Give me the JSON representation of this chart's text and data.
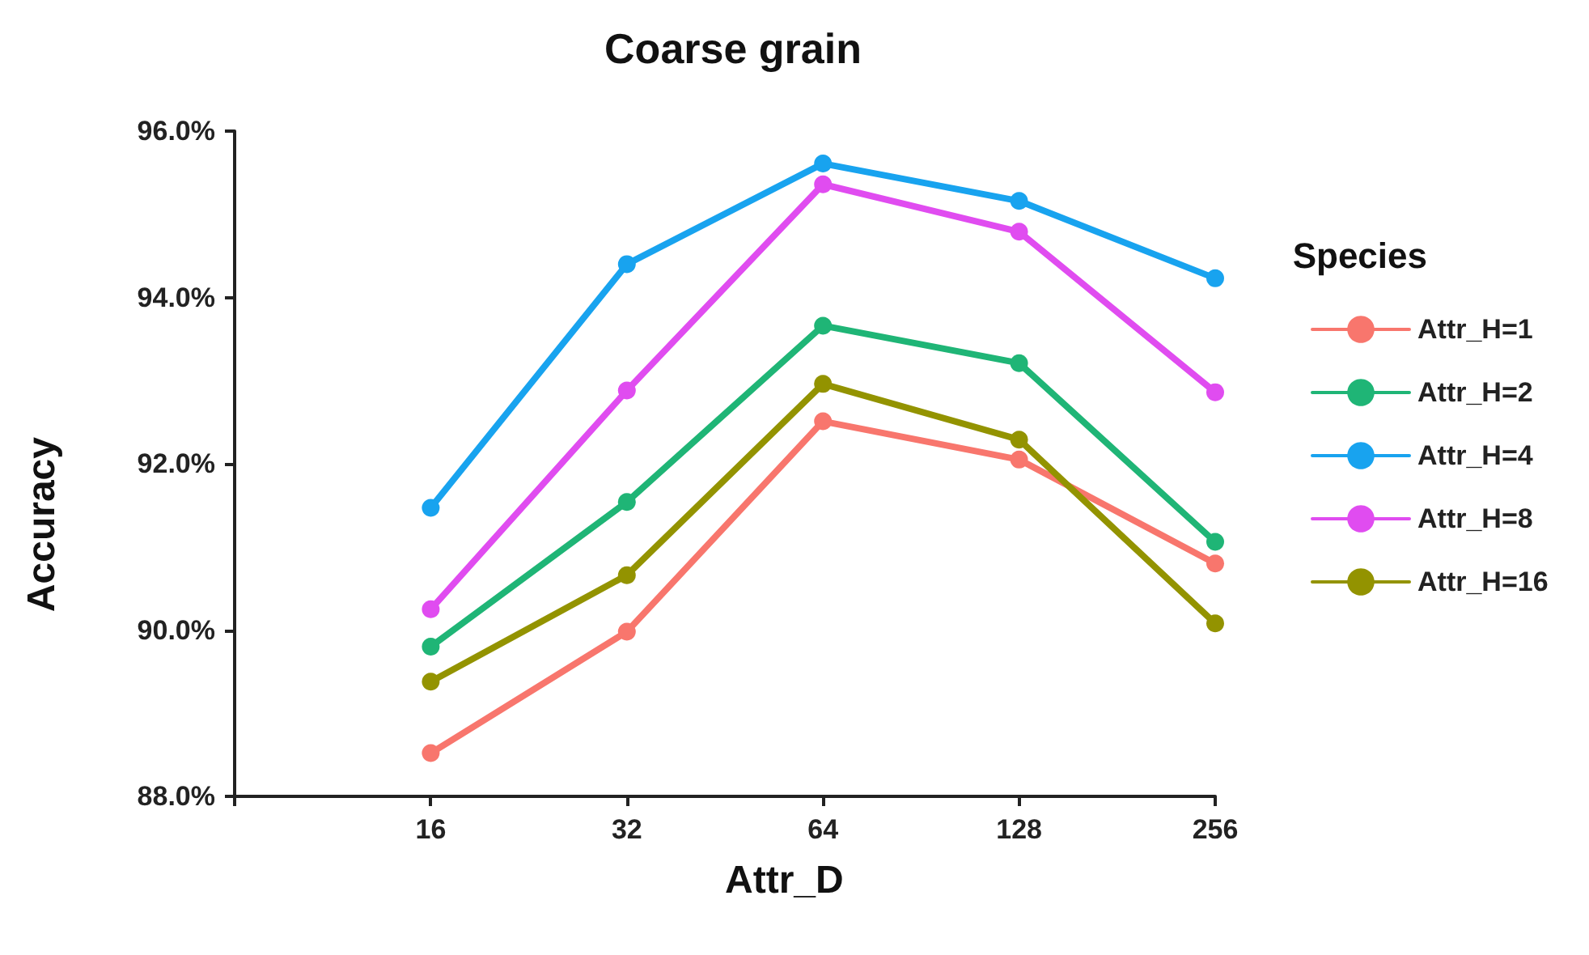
{
  "chart_data": {
    "type": "line",
    "title": "Coarse grain",
    "xlabel": "Attr_D",
    "ylabel": "Accuracy",
    "legend_title": "Species",
    "x": [
      16,
      32,
      64,
      128,
      256
    ],
    "log": "x",
    "xlim": [
      8,
      256
    ],
    "xticks": [
      {
        "value": 8,
        "label": null
      },
      16,
      32,
      64,
      128,
      256
    ],
    "ylim": [
      88,
      96
    ],
    "yticks": [
      {
        "value": 88,
        "label": "88.0%"
      },
      {
        "value": 90,
        "label": "90.0%"
      },
      {
        "value": 92,
        "label": "92.0%"
      },
      {
        "value": 94,
        "label": "94.0%"
      },
      {
        "value": 96,
        "label": "96.0%"
      }
    ],
    "series": [
      {
        "name": "Attr_H=1",
        "color": "#f8766d",
        "values": [
          88.52,
          89.98,
          92.51,
          92.05,
          90.8
        ]
      },
      {
        "name": "Attr_H=2",
        "color": "#1fb576",
        "values": [
          89.8,
          91.54,
          93.66,
          93.21,
          91.06
        ]
      },
      {
        "name": "Attr_H=4",
        "color": "#18a3ef",
        "values": [
          91.47,
          94.4,
          95.61,
          95.16,
          94.23
        ]
      },
      {
        "name": "Attr_H=8",
        "color": "#e04cf0",
        "values": [
          90.25,
          92.88,
          95.36,
          94.79,
          92.86
        ]
      },
      {
        "name": "Attr_H=16",
        "color": "#939300",
        "values": [
          89.38,
          90.66,
          92.96,
          92.29,
          90.08
        ]
      }
    ],
    "grid": false,
    "legend": "right",
    "marker": "circle",
    "line_style": "solid"
  }
}
